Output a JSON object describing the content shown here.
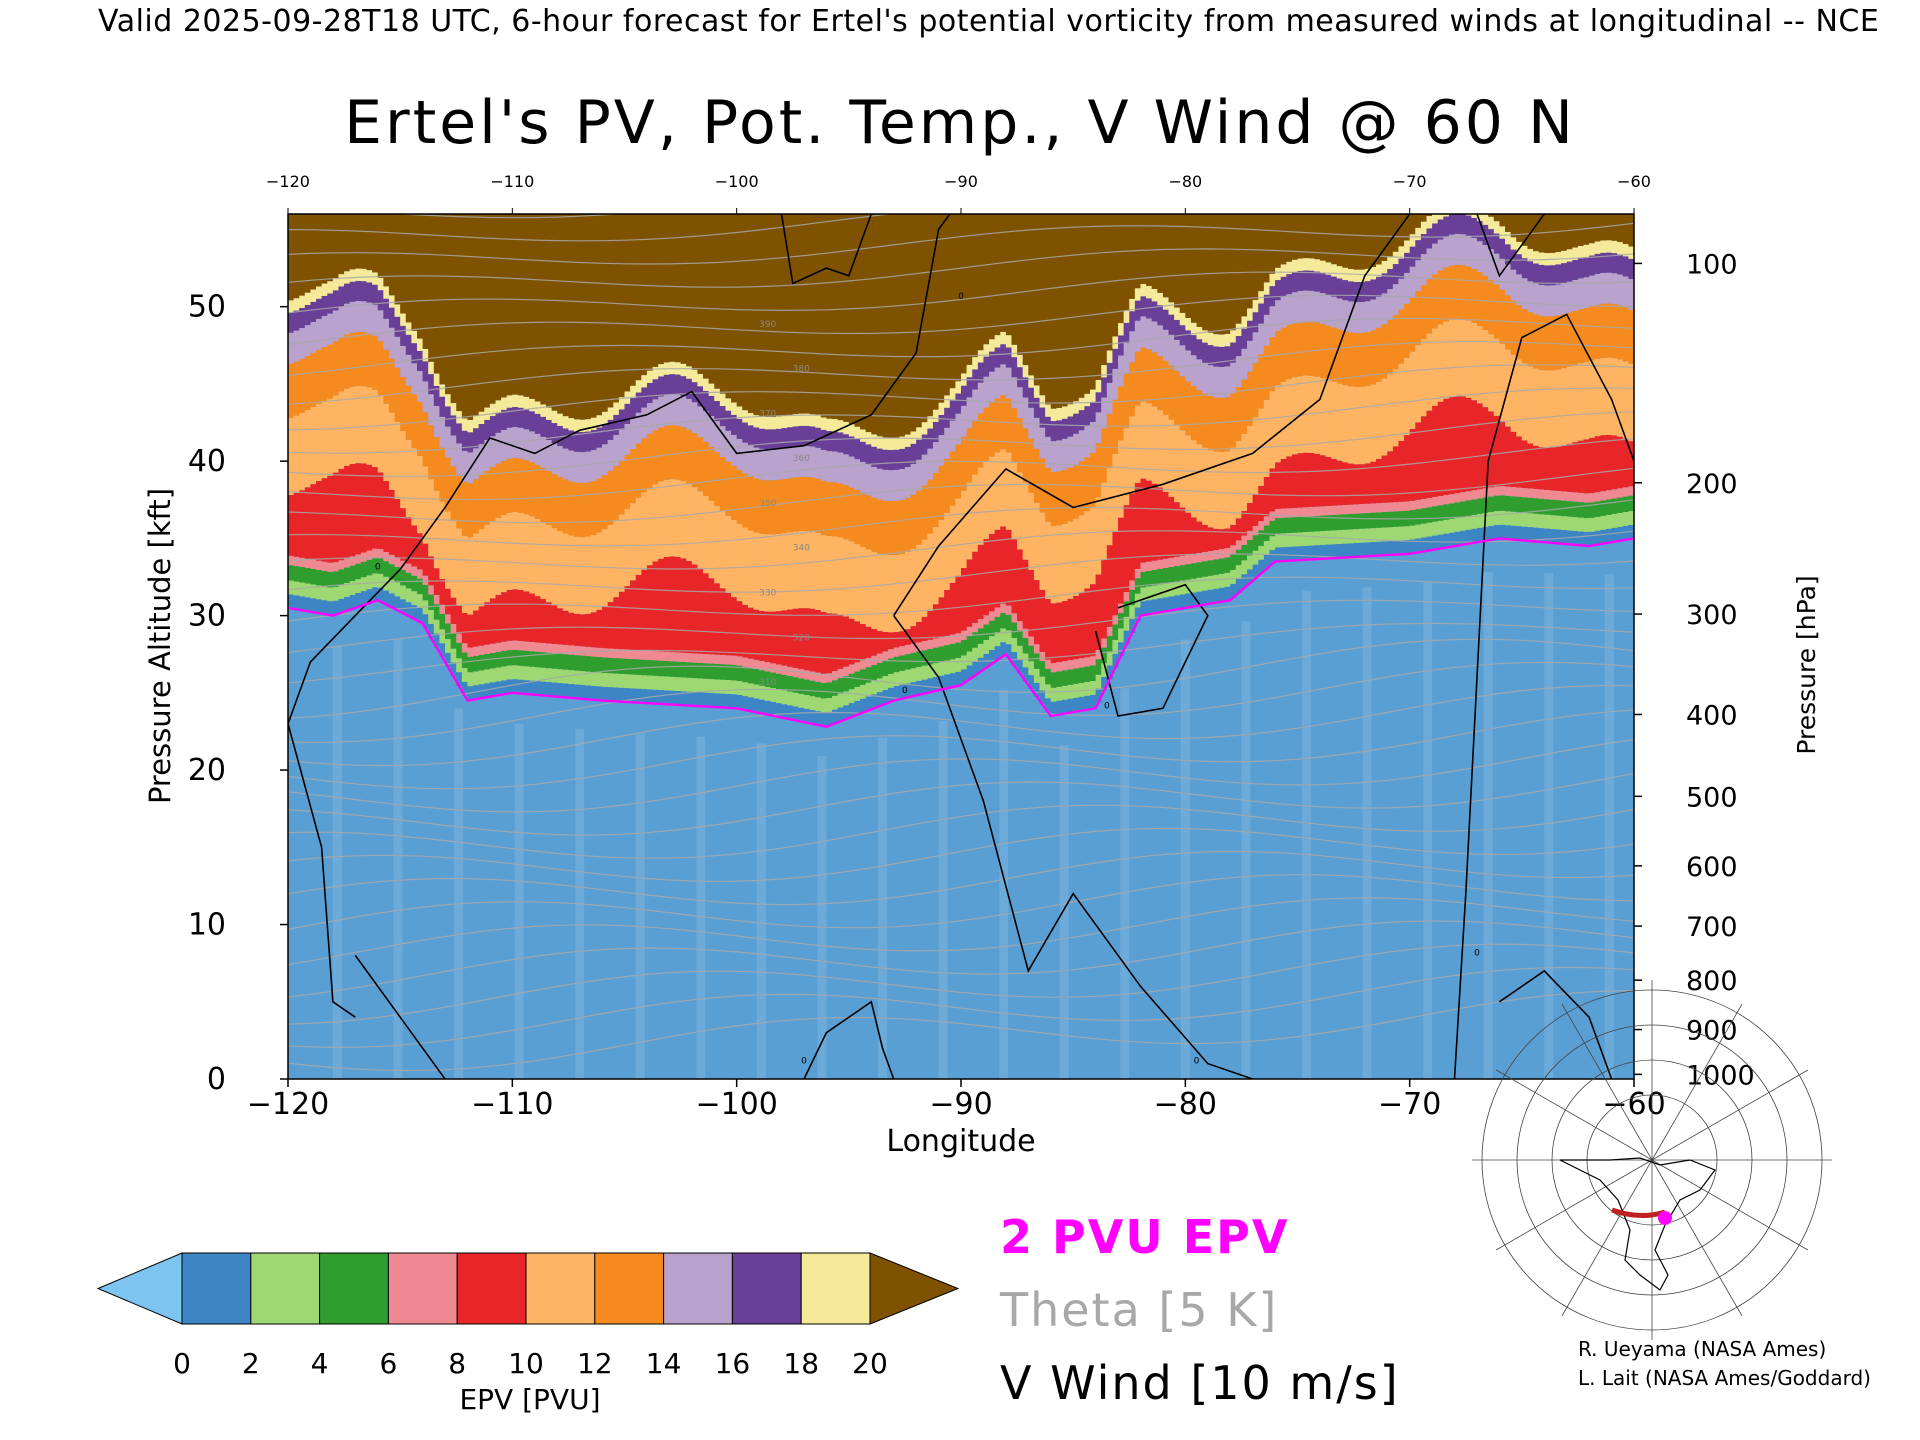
{
  "header": {
    "valid_line": "Valid 2025-09-28T18 UTC, 6-hour forecast for Ertel's potential vorticity from measured winds at longitudinal -- NCE"
  },
  "chart_data": {
    "type": "heatmap",
    "title": "Ertel's PV, Pot. Temp., V Wind @ 60 N",
    "xlabel": "Longitude",
    "ylabel": "Pressure Altitude [kft]",
    "y2label": "Pressure [hPa]",
    "xlim": [
      -120,
      -60
    ],
    "ylim": [
      0,
      56
    ],
    "x_ticks": [
      -120,
      -110,
      -100,
      -90,
      -80,
      -70,
      -60
    ],
    "top_x_ticks": [
      -120,
      -110,
      -100,
      -90,
      -80,
      -70,
      -60
    ],
    "y_ticks": [
      0,
      10,
      20,
      30,
      40,
      50
    ],
    "pressure_ticks": [
      {
        "hpa": 100,
        "kft": 52.8
      },
      {
        "hpa": 200,
        "kft": 38.6
      },
      {
        "hpa": 300,
        "kft": 30.1
      },
      {
        "hpa": 400,
        "kft": 23.6
      },
      {
        "hpa": 500,
        "kft": 18.3
      },
      {
        "hpa": 600,
        "kft": 13.8
      },
      {
        "hpa": 700,
        "kft": 9.9
      },
      {
        "hpa": 800,
        "kft": 6.4
      },
      {
        "hpa": 900,
        "kft": 3.2
      },
      {
        "hpa": 1000,
        "kft": 0.3
      }
    ],
    "colorbar": {
      "label": "EPV [PVU]",
      "ticks": [
        0,
        2,
        4,
        6,
        8,
        10,
        12,
        14,
        16,
        18,
        20
      ],
      "colors": [
        "#3d86c6",
        "#9ed873",
        "#2f9e2f",
        "#f08a92",
        "#e8262a",
        "#ffb463",
        "#f58b1e",
        "#b9a2cc",
        "#6a3f98",
        "#f5e99a"
      ],
      "under_color": "#7dc4f0",
      "over_color": "#7f5200"
    },
    "pv_2pvu_kft": [
      {
        "lon": -120,
        "kft": 30.5
      },
      {
        "lon": -118,
        "kft": 30.0
      },
      {
        "lon": -116,
        "kft": 31.0
      },
      {
        "lon": -114,
        "kft": 29.5
      },
      {
        "lon": -112,
        "kft": 24.5
      },
      {
        "lon": -110,
        "kft": 25.0
      },
      {
        "lon": -106,
        "kft": 24.5
      },
      {
        "lon": -100,
        "kft": 24.0
      },
      {
        "lon": -96,
        "kft": 22.8
      },
      {
        "lon": -93,
        "kft": 24.5
      },
      {
        "lon": -90,
        "kft": 25.5
      },
      {
        "lon": -88,
        "kft": 27.5
      },
      {
        "lon": -86,
        "kft": 23.5
      },
      {
        "lon": -84,
        "kft": 24.0
      },
      {
        "lon": -82,
        "kft": 30.0
      },
      {
        "lon": -78,
        "kft": 31.0
      },
      {
        "lon": -76,
        "kft": 33.5
      },
      {
        "lon": -70,
        "kft": 34.0
      },
      {
        "lon": -66,
        "kft": 35.0
      },
      {
        "lon": -62,
        "kft": 34.5
      },
      {
        "lon": -60,
        "kft": 35.0
      }
    ],
    "theta_interval_k": 5,
    "theta_labels": [
      "310",
      "320",
      "330",
      "340",
      "350",
      "360",
      "370",
      "380",
      "390"
    ],
    "v_wind_interval_ms": 10,
    "v_wind_zero_contour_label": "0"
  },
  "legend": {
    "pv_2pvu": "2 PVU EPV",
    "theta": "Theta [5 K]",
    "v_wind": "V Wind [10 m/s]"
  },
  "credits": {
    "line1": "R. Ueyama (NASA Ames)",
    "line2": "L. Lait (NASA Ames/Goddard)"
  },
  "colors": {
    "pv_contour": "#ff00ff",
    "theta_contour": "#a8a8a8",
    "v_wind_contour": "#000000",
    "section_line": "#c02020",
    "location_dot": "#ff00ff"
  }
}
